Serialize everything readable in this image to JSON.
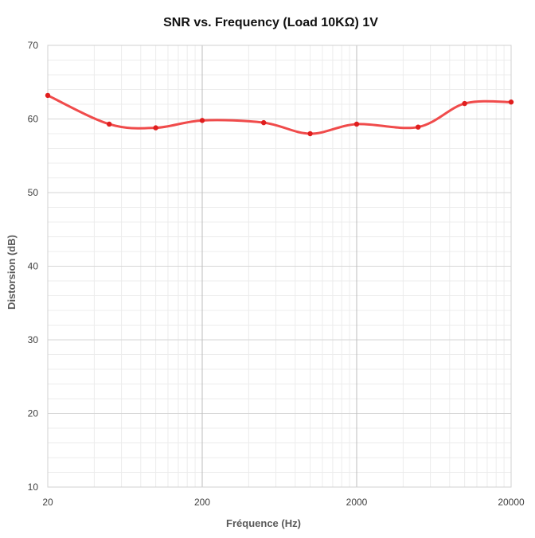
{
  "chart_data": {
    "type": "line",
    "title": "SNR vs. Frequency (Load  10KΩ) 1V",
    "xlabel": "Fréquence (Hz)",
    "ylabel": "Distorsion (dB)",
    "x_scale": "log",
    "xlim": [
      20,
      20000
    ],
    "ylim": [
      10,
      70
    ],
    "x_ticks": [
      20,
      200,
      2000,
      20000
    ],
    "x_tick_labels": [
      "20",
      "200",
      "2000",
      "20000"
    ],
    "y_ticks": [
      10,
      20,
      30,
      40,
      50,
      60,
      70
    ],
    "y_tick_labels": [
      "10",
      "20",
      "30",
      "40",
      "50",
      "60",
      "70"
    ],
    "grid": true,
    "legend": "none",
    "line_color": "#f04b4b",
    "marker_color": "#e01e1e",
    "series": [
      {
        "x": [
          20,
          50,
          100,
          200,
          500,
          1000,
          2000,
          5000,
          10000,
          20000
        ],
        "y": [
          63.2,
          59.3,
          58.8,
          59.8,
          59.5,
          58.0,
          59.3,
          58.9,
          62.1,
          62.3
        ]
      }
    ]
  }
}
